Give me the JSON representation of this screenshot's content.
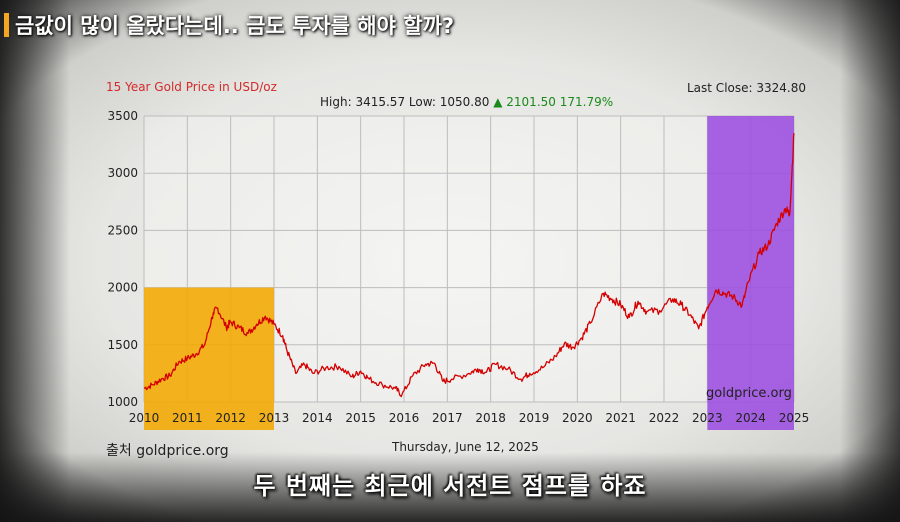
{
  "headline": "금값이 많이 올랐다는데.. 금도 투자를 해야 할까?",
  "subtitle": "두 번째는 최근에 서전트 점프를 하죠",
  "source": "출처 goldprice.org",
  "chart_data": {
    "type": "line",
    "title": "15 Year Gold Price in USD/oz",
    "last_close_label": "Last Close:",
    "last_close": "3324.80",
    "high_label": "High:",
    "high": "3415.57",
    "low_label": "Low:",
    "low": "1050.80",
    "change": "2101.50",
    "change_pct": "171.79%",
    "date": "Thursday, June 12, 2025",
    "watermark": "goldprice.org",
    "xlim": [
      2010,
      2025
    ],
    "ylim": [
      1000,
      3500
    ],
    "x_ticks": [
      "2010",
      "2011",
      "2012",
      "2013",
      "2014",
      "2015",
      "2016",
      "2017",
      "2018",
      "2019",
      "2020",
      "2021",
      "2022",
      "2023",
      "2024",
      "2025"
    ],
    "y_ticks": [
      "1000",
      "1500",
      "2000",
      "2500",
      "3000",
      "3500"
    ],
    "grid": true,
    "highlights": [
      {
        "x_start": 2010,
        "x_end": 2013,
        "y_top": 2000,
        "color": "#f2a900"
      },
      {
        "x_start": 2023,
        "x_end": 2025,
        "y_top": 3500,
        "color": "#9b4de0"
      }
    ],
    "series": [
      {
        "color": "#d40000",
        "x": [
          2010.0,
          2010.2,
          2010.4,
          2010.6,
          2010.8,
          2011.0,
          2011.2,
          2011.4,
          2011.6,
          2011.7,
          2011.9,
          2012.0,
          2012.2,
          2012.4,
          2012.6,
          2012.8,
          2013.0,
          2013.2,
          2013.3,
          2013.5,
          2013.7,
          2013.9,
          2014.2,
          2014.5,
          2014.8,
          2015.0,
          2015.2,
          2015.5,
          2015.8,
          2015.95,
          2016.2,
          2016.5,
          2016.7,
          2016.9,
          2017.1,
          2017.5,
          2017.7,
          2017.9,
          2018.1,
          2018.4,
          2018.7,
          2018.9,
          2019.2,
          2019.5,
          2019.7,
          2019.9,
          2020.1,
          2020.3,
          2020.6,
          2020.8,
          2021.0,
          2021.2,
          2021.4,
          2021.6,
          2021.9,
          2022.2,
          2022.4,
          2022.6,
          2022.8,
          2023.0,
          2023.2,
          2023.4,
          2023.6,
          2023.8,
          2023.95,
          2024.2,
          2024.4,
          2024.6,
          2024.8,
          2024.9,
          2025.0
        ],
        "y": [
          1120,
          1150,
          1200,
          1230,
          1350,
          1380,
          1420,
          1500,
          1780,
          1820,
          1650,
          1700,
          1650,
          1600,
          1680,
          1750,
          1680,
          1580,
          1450,
          1250,
          1330,
          1250,
          1300,
          1310,
          1220,
          1270,
          1200,
          1150,
          1120,
          1060,
          1230,
          1330,
          1340,
          1180,
          1200,
          1250,
          1290,
          1260,
          1330,
          1290,
          1200,
          1250,
          1300,
          1400,
          1510,
          1480,
          1560,
          1690,
          1950,
          1900,
          1850,
          1740,
          1880,
          1790,
          1800,
          1900,
          1850,
          1760,
          1640,
          1830,
          1980,
          1950,
          1920,
          1840,
          2050,
          2300,
          2370,
          2560,
          2690,
          2640,
          3350
        ]
      }
    ]
  }
}
